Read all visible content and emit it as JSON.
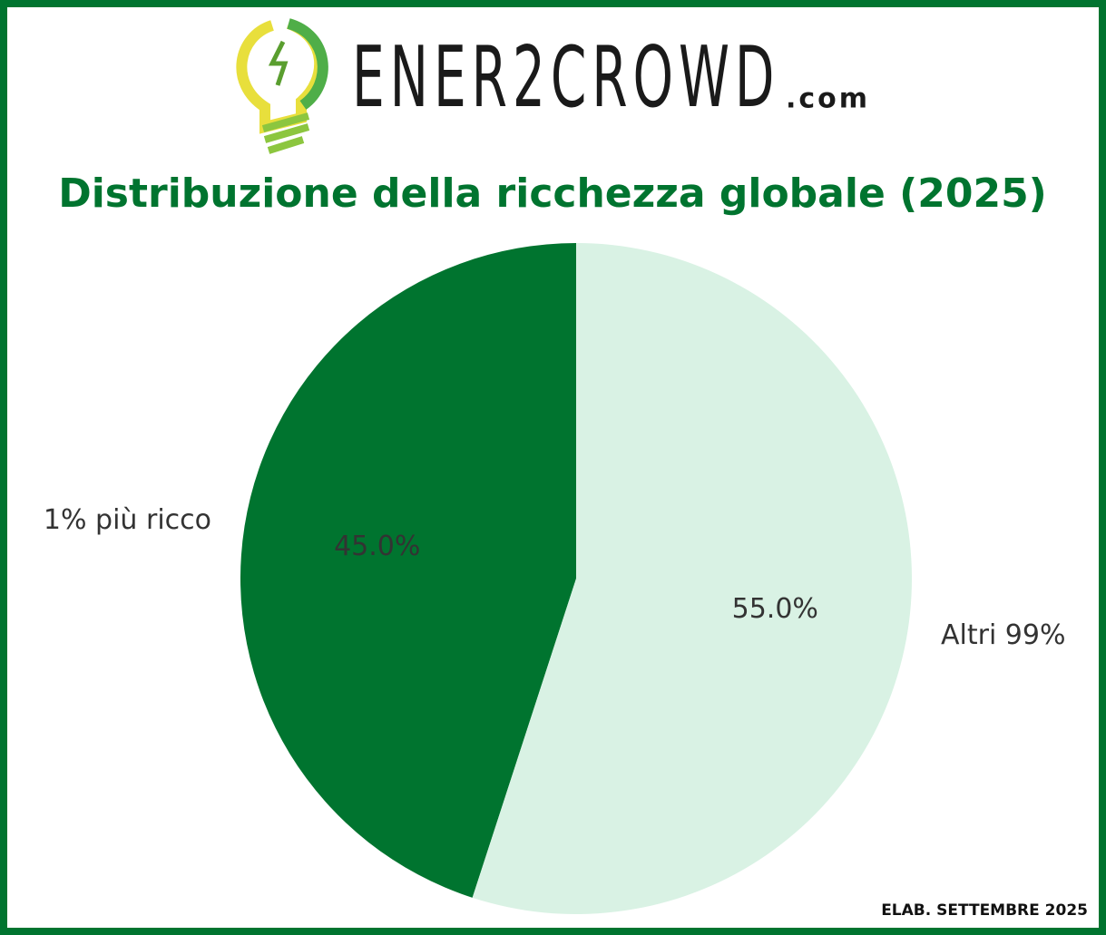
{
  "logo": {
    "name": "ENER2CROWD",
    "domain": ".com"
  },
  "chart_data": {
    "type": "pie",
    "title": "Distribuzione della ricchezza globale (2025)",
    "categories": [
      "1% più ricco",
      "Altri 99%"
    ],
    "values": [
      45,
      55
    ],
    "value_labels": [
      "45.0%",
      "55.0%"
    ],
    "colors": [
      "#00742f",
      "#d9f2e4"
    ],
    "start_angle": 90,
    "counterclockwise": true
  },
  "footer": "ELAB. SETTEMBRE 2025"
}
